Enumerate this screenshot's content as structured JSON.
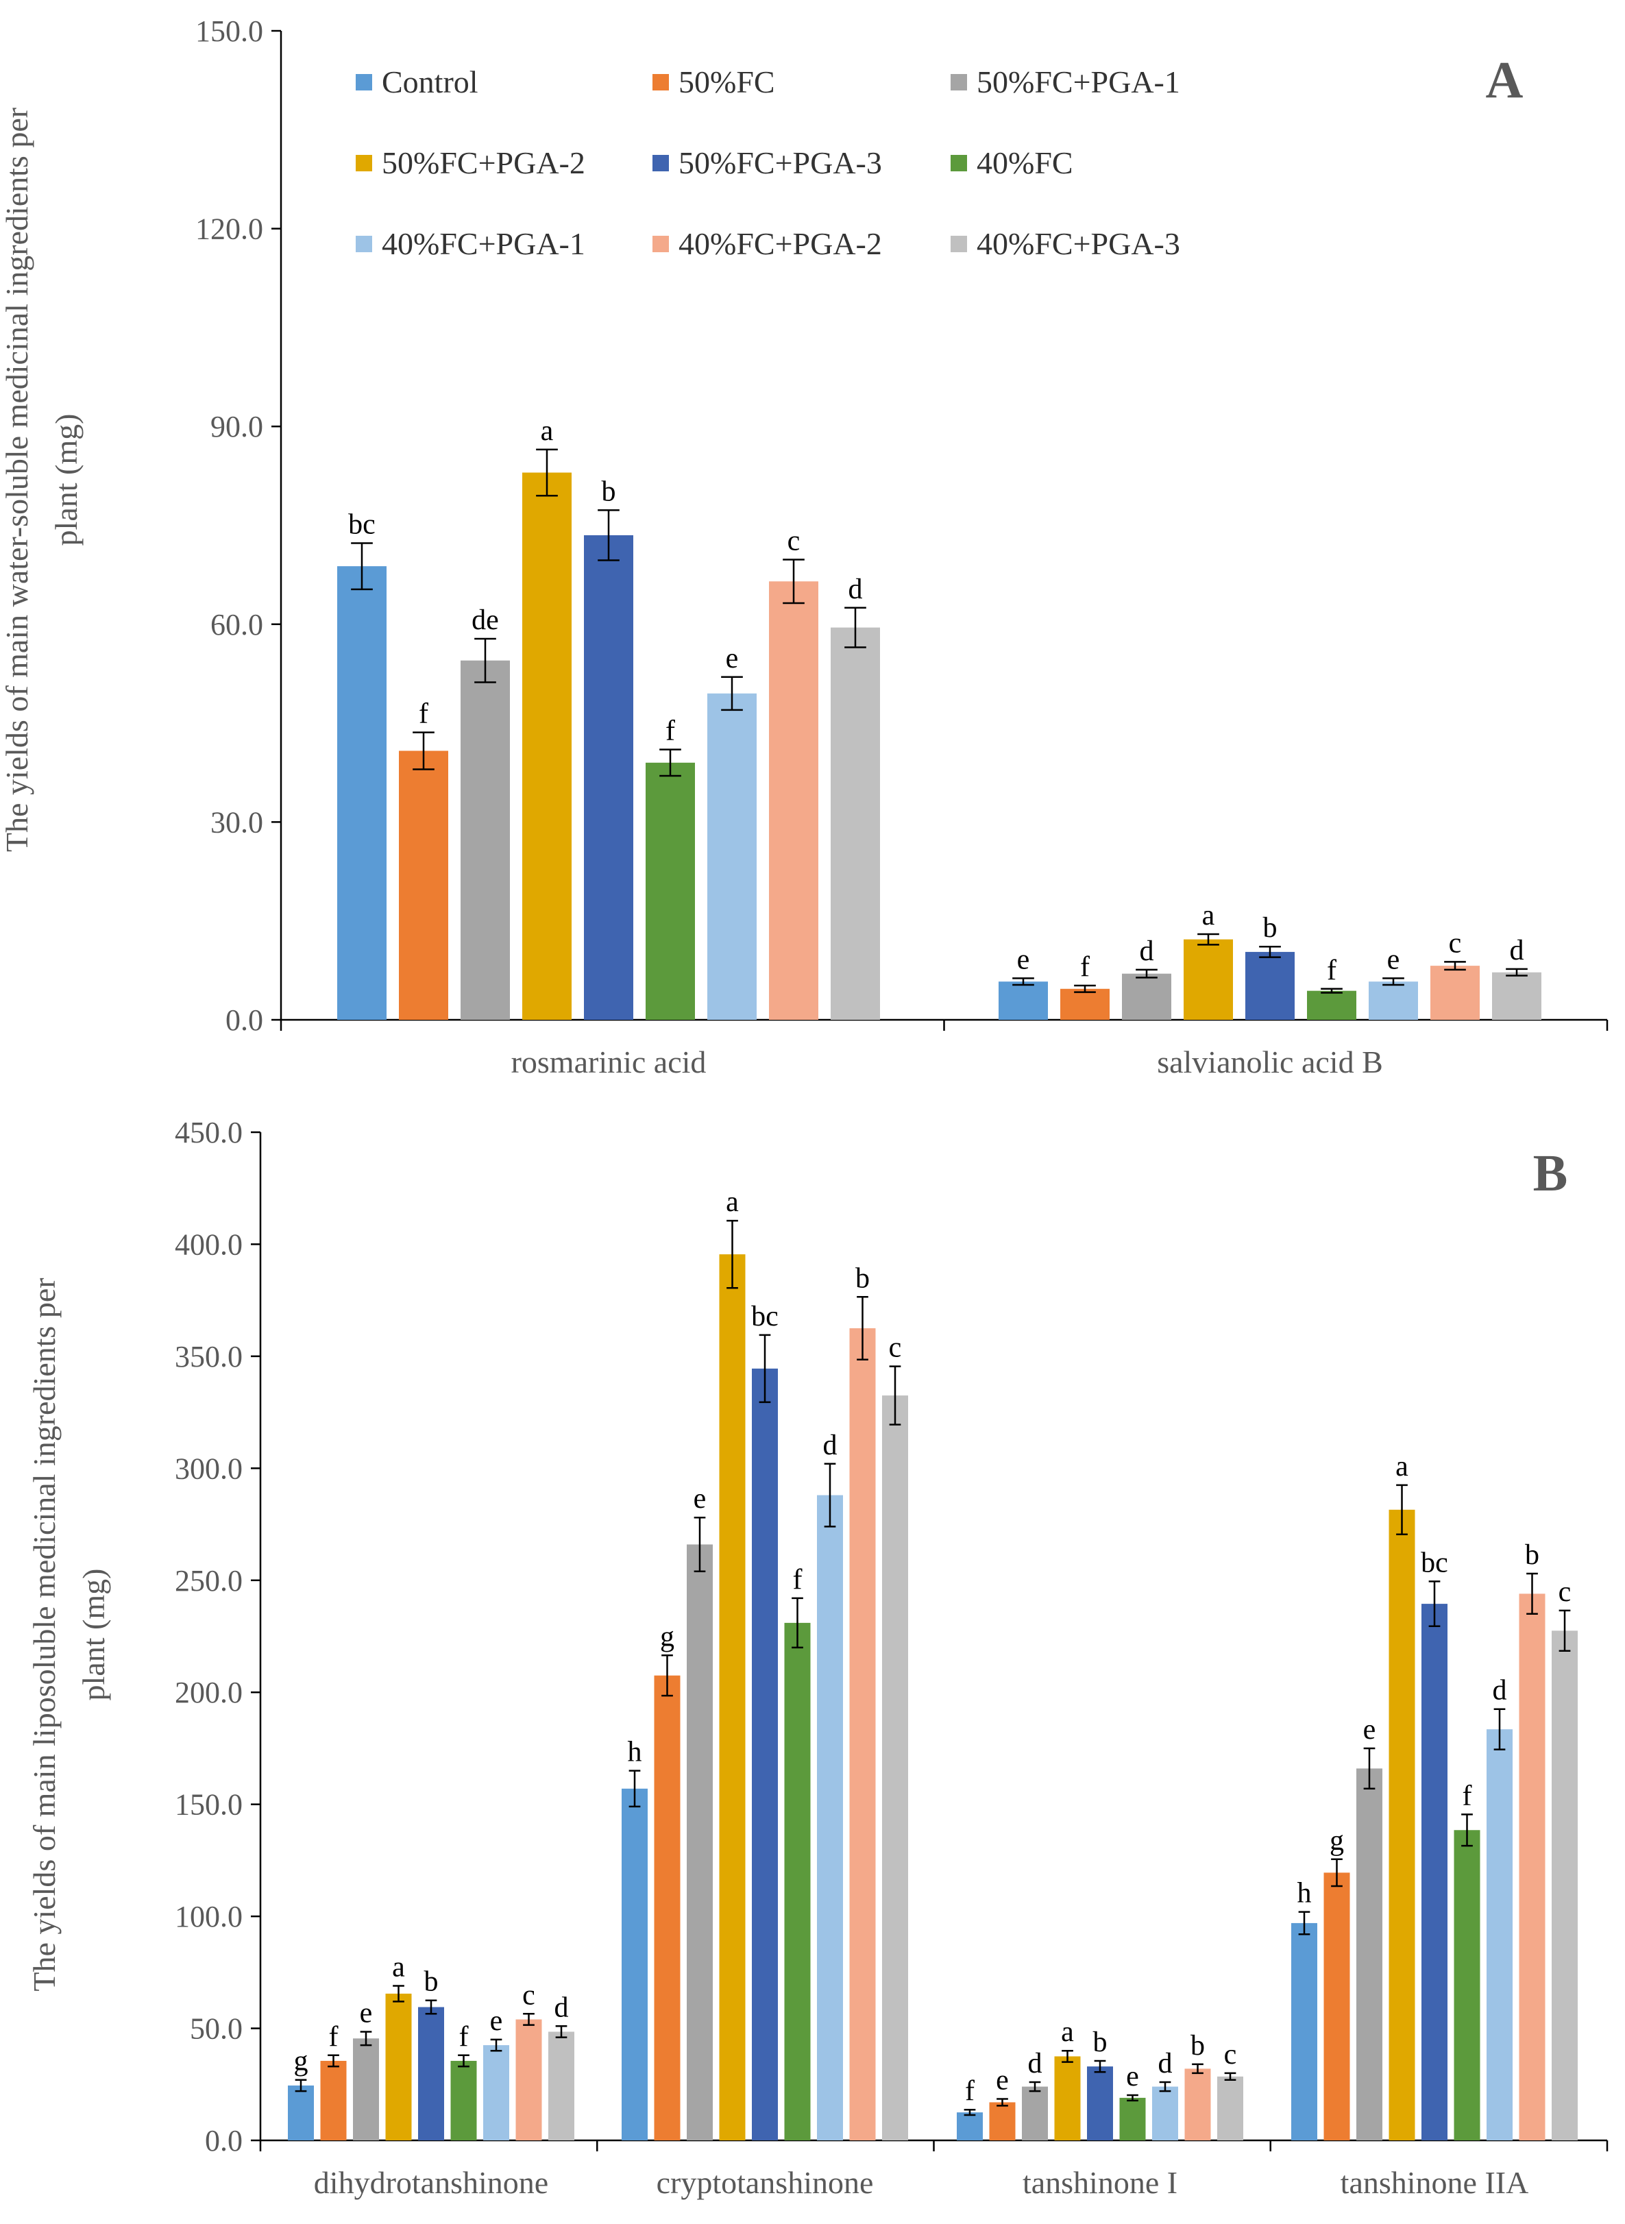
{
  "figure": {
    "legend": {
      "series_names": [
        "Control",
        "50%FC",
        "50%FC+PGA-1",
        "50%FC+PGA-2",
        "50%FC+PGA-3",
        "40%FC",
        "40%FC+PGA-1",
        "40%FC+PGA-2",
        "40%FC+PGA-3"
      ]
    },
    "colors": [
      "#5B9BD5",
      "#ED7D31",
      "#A5A5A5",
      "#E0A800",
      "#3F64B0",
      "#5C9A3C",
      "#9DC3E6",
      "#F4A98A",
      "#C0C0C0"
    ]
  },
  "chart_data": [
    {
      "type": "bar",
      "panel_label": "A",
      "ylabel_lines": [
        "The yields of main water-soluble medicinal ingredients per",
        "plant (mg)"
      ],
      "ylim": [
        0,
        150
      ],
      "yticks": [
        "0.0",
        "30.0",
        "60.0",
        "90.0",
        "120.0",
        "150.0"
      ],
      "categories": [
        "rosmarinic acid",
        "salvianolic acid B"
      ],
      "series": [
        {
          "name": "Control",
          "values": [
            68.8,
            5.8
          ],
          "errors": [
            3.5,
            0.5
          ],
          "letters": [
            "bc",
            "e"
          ]
        },
        {
          "name": "50%FC",
          "values": [
            40.8,
            4.7
          ],
          "errors": [
            2.8,
            0.5
          ],
          "letters": [
            "f",
            "f"
          ]
        },
        {
          "name": "50%FC+PGA-1",
          "values": [
            54.5,
            7.0
          ],
          "errors": [
            3.3,
            0.6
          ],
          "letters": [
            "de",
            "d"
          ]
        },
        {
          "name": "50%FC+PGA-2",
          "values": [
            83.0,
            12.2
          ],
          "errors": [
            3.5,
            0.8
          ],
          "letters": [
            "a",
            "a"
          ]
        },
        {
          "name": "50%FC+PGA-3",
          "values": [
            73.5,
            10.3
          ],
          "errors": [
            3.8,
            0.8
          ],
          "letters": [
            "b",
            "b"
          ]
        },
        {
          "name": "40%FC",
          "values": [
            39.0,
            4.4
          ],
          "errors": [
            2.0,
            0.3
          ],
          "letters": [
            "f",
            "f"
          ]
        },
        {
          "name": "40%FC+PGA-1",
          "values": [
            49.5,
            5.8
          ],
          "errors": [
            2.5,
            0.5
          ],
          "letters": [
            "e",
            "e"
          ]
        },
        {
          "name": "40%FC+PGA-2",
          "values": [
            66.5,
            8.2
          ],
          "errors": [
            3.3,
            0.6
          ],
          "letters": [
            "c",
            "c"
          ]
        },
        {
          "name": "40%FC+PGA-3",
          "values": [
            59.5,
            7.2
          ],
          "errors": [
            3.0,
            0.5
          ],
          "letters": [
            "d",
            "d"
          ]
        }
      ]
    },
    {
      "type": "bar",
      "panel_label": "B",
      "ylabel_lines": [
        "The yields of main liposoluble medicinal ingredients per",
        "plant (mg)"
      ],
      "ylim": [
        0,
        450
      ],
      "yticks": [
        "0.0",
        "50.0",
        "100.0",
        "150.0",
        "200.0",
        "250.0",
        "300.0",
        "350.0",
        "400.0",
        "450.0"
      ],
      "categories": [
        "dihydrotanshinone",
        "cryptotanshinone",
        "tanshinone I",
        "tanshinone IIA"
      ],
      "series": [
        {
          "name": "Control",
          "values": [
            24.5,
            157.0,
            12.5,
            97.0
          ],
          "errors": [
            2.5,
            8.0,
            1.2,
            5.0
          ],
          "letters": [
            "g",
            "h",
            "f",
            "h"
          ]
        },
        {
          "name": "50%FC",
          "values": [
            35.5,
            207.5,
            17.0,
            119.5
          ],
          "errors": [
            2.5,
            9.0,
            1.5,
            6.0
          ],
          "letters": [
            "f",
            "g",
            "e",
            "g"
          ]
        },
        {
          "name": "50%FC+PGA-1",
          "values": [
            45.5,
            266.0,
            24.0,
            166.0
          ],
          "errors": [
            3.0,
            12.0,
            2.0,
            9.0
          ],
          "letters": [
            "e",
            "e",
            "d",
            "e"
          ]
        },
        {
          "name": "50%FC+PGA-2",
          "values": [
            65.5,
            395.5,
            37.5,
            281.5
          ],
          "errors": [
            3.5,
            15.0,
            2.5,
            11.0
          ],
          "letters": [
            "a",
            "a",
            "a",
            "a"
          ]
        },
        {
          "name": "50%FC+PGA-3",
          "values": [
            59.5,
            344.5,
            33.0,
            239.5
          ],
          "errors": [
            3.0,
            15.0,
            2.5,
            10.0
          ],
          "letters": [
            "b",
            "bc",
            "b",
            "bc"
          ]
        },
        {
          "name": "40%FC",
          "values": [
            35.5,
            231.0,
            19.0,
            138.5
          ],
          "errors": [
            2.5,
            11.0,
            1.2,
            7.0
          ],
          "letters": [
            "f",
            "f",
            "e",
            "f"
          ]
        },
        {
          "name": "40%FC+PGA-1",
          "values": [
            42.5,
            288.0,
            24.0,
            183.5
          ],
          "errors": [
            2.5,
            14.0,
            2.0,
            9.0
          ],
          "letters": [
            "e",
            "d",
            "d",
            "d"
          ]
        },
        {
          "name": "40%FC+PGA-2",
          "values": [
            54.0,
            362.5,
            32.0,
            244.0
          ],
          "errors": [
            2.5,
            14.0,
            2.0,
            9.0
          ],
          "letters": [
            "c",
            "b",
            "b",
            "b"
          ]
        },
        {
          "name": "40%FC+PGA-3",
          "values": [
            48.5,
            332.5,
            28.5,
            227.5
          ],
          "errors": [
            2.5,
            13.0,
            1.5,
            9.0
          ],
          "letters": [
            "d",
            "c",
            "c",
            "c"
          ]
        }
      ]
    }
  ]
}
